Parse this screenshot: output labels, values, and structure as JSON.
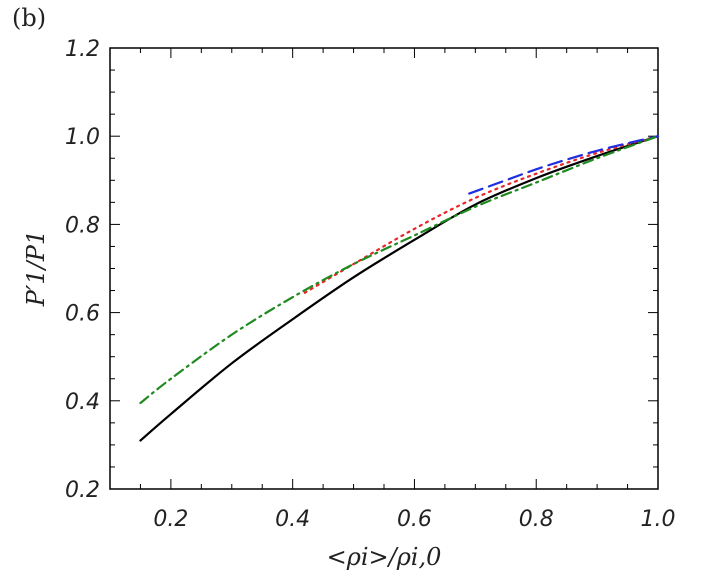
{
  "panel_label": "(b)",
  "chart_data": {
    "type": "line",
    "xlabel": "<ρi>/ρi,0",
    "ylabel": "P′1/P1",
    "xlim": [
      0.1,
      1.0
    ],
    "ylim": [
      0.2,
      1.2
    ],
    "xticks": [
      0.2,
      0.4,
      0.6,
      0.8,
      1.0
    ],
    "yticks": [
      0.2,
      0.4,
      0.6,
      0.8,
      1.0,
      1.2
    ],
    "xtick_labels": [
      "0.2",
      "0.4",
      "0.6",
      "0.8",
      "1.0"
    ],
    "ytick_labels": [
      "0.2",
      "0.4",
      "0.6",
      "0.8",
      "1.0",
      "1.2"
    ],
    "grid": false,
    "series": [
      {
        "color": "#000000",
        "style": "solid",
        "x": [
          0.15,
          0.2,
          0.3,
          0.4,
          0.5,
          0.6,
          0.7,
          0.8,
          0.9,
          1.0
        ],
        "y": [
          0.31,
          0.37,
          0.485,
          0.585,
          0.68,
          0.765,
          0.845,
          0.905,
          0.955,
          1.0
        ]
      },
      {
        "color": "#e8262a",
        "style": "dotted",
        "x": [
          0.42,
          0.5,
          0.6,
          0.7,
          0.8,
          0.9,
          1.0
        ],
        "y": [
          0.645,
          0.71,
          0.79,
          0.86,
          0.915,
          0.962,
          1.0
        ]
      },
      {
        "color": "#1e2ee0",
        "style": "dashed",
        "x": [
          0.69,
          0.75,
          0.8,
          0.85,
          0.9,
          0.95,
          1.0
        ],
        "y": [
          0.87,
          0.9,
          0.925,
          0.947,
          0.967,
          0.984,
          1.0
        ]
      },
      {
        "color": "#1f8a1f",
        "style": "dash-dot",
        "x": [
          0.15,
          0.2,
          0.3,
          0.4,
          0.5,
          0.6,
          0.7,
          0.8,
          0.9,
          1.0
        ],
        "y": [
          0.395,
          0.45,
          0.55,
          0.635,
          0.71,
          0.775,
          0.84,
          0.895,
          0.95,
          1.0
        ]
      }
    ]
  }
}
